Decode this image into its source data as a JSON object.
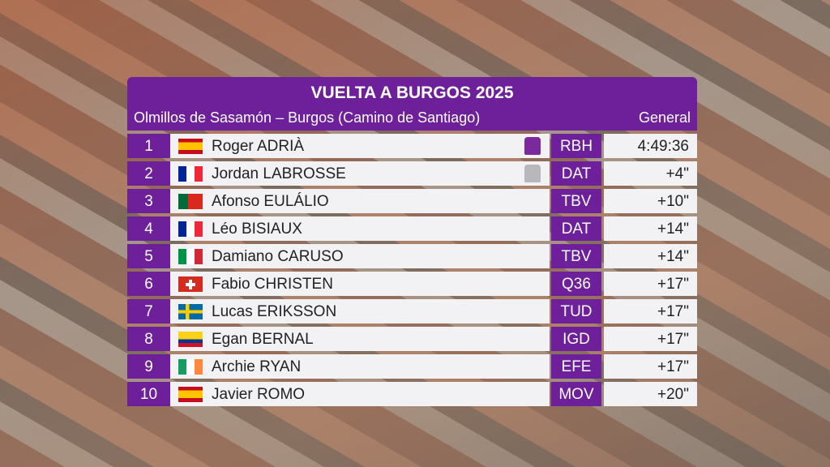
{
  "header": {
    "title": "VUELTA A BURGOS 2025",
    "subtitle": "Olmillos de Sasamón – Burgos (Camino de Santiago)",
    "column": "General"
  },
  "table": {
    "rows": [
      [
        "1",
        "Roger ADRIÀ",
        "RBH",
        "4:49:36"
      ],
      [
        "2",
        "Jordan LABROSSE",
        "DAT",
        "+4\""
      ],
      [
        "3",
        "Afonso EULÁLIO",
        "TBV",
        "+10\""
      ],
      [
        "4",
        "Léo BISIAUX",
        "DAT",
        "+14\""
      ],
      [
        "5",
        "Damiano CARUSO",
        "TBV",
        "+14\""
      ],
      [
        "6",
        "Fabio CHRISTEN",
        "Q36",
        "+17\""
      ],
      [
        "7",
        "Lucas ERIKSSON",
        "TUD",
        "+17\""
      ],
      [
        "8",
        "Egan BERNAL",
        "IGD",
        "+17\""
      ],
      [
        "9",
        "Archie RYAN",
        "EFE",
        "+17\""
      ],
      [
        "10",
        "Javier ROMO",
        "MOV",
        "+20\""
      ]
    ]
  }
}
